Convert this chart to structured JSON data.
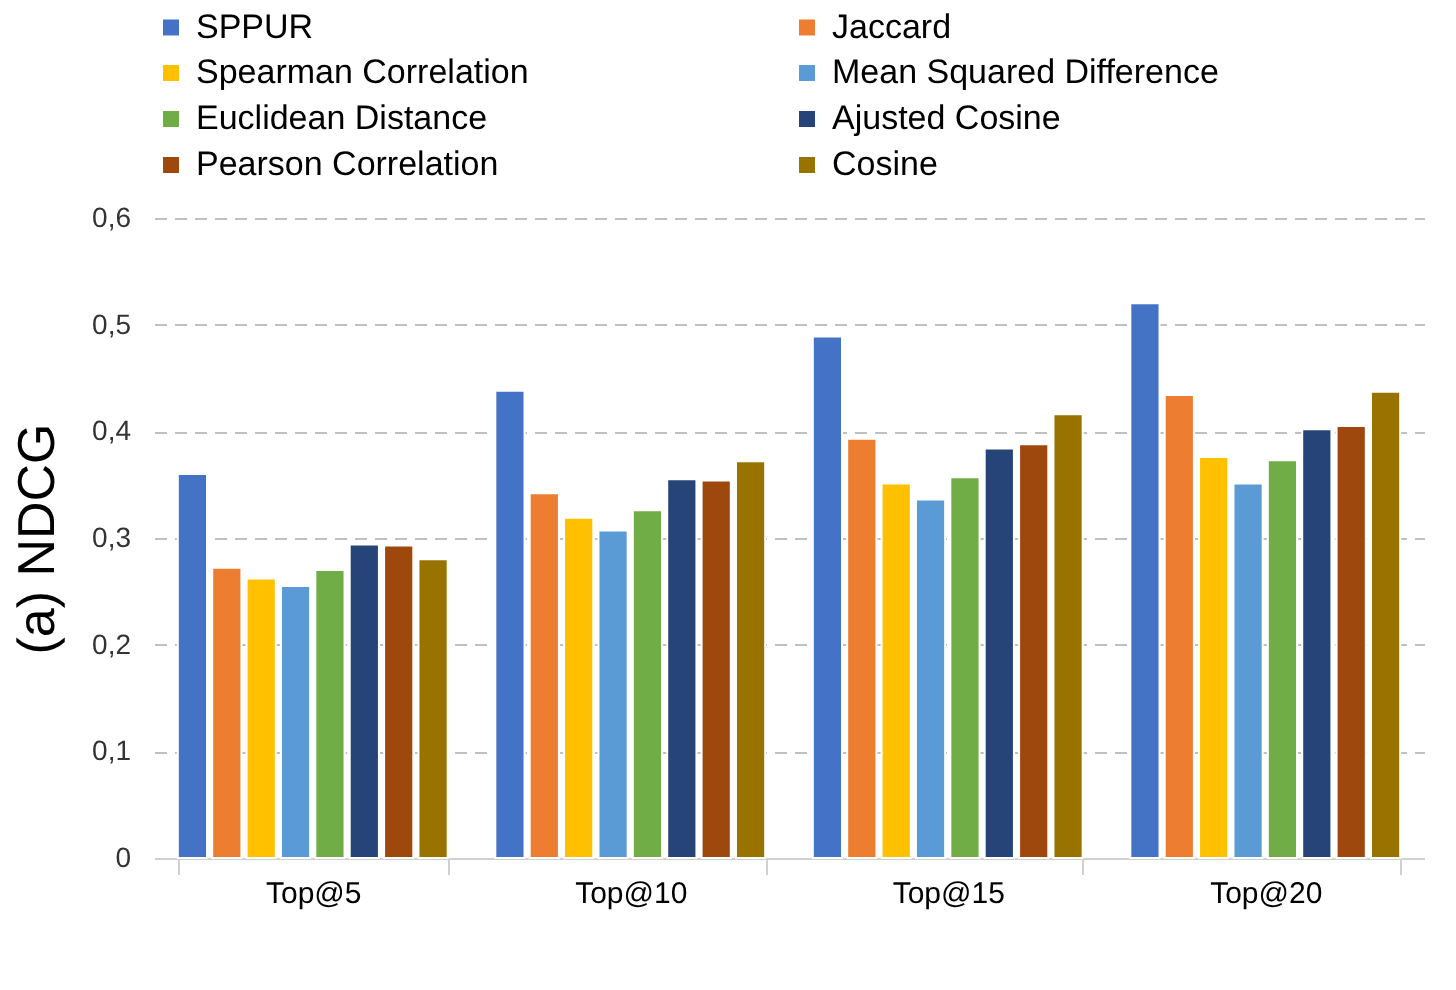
{
  "chart_data": {
    "type": "bar",
    "ylabel": "(a) NDCG",
    "categories": [
      "Top@5",
      "Top@10",
      "Top@15",
      "Top@20"
    ],
    "series": [
      {
        "name": "SPPUR",
        "color": "#4472c4",
        "values": [
          0.36,
          0.438,
          0.489,
          0.52
        ]
      },
      {
        "name": "Jaccard",
        "color": "#ed7d31",
        "values": [
          0.272,
          0.342,
          0.393,
          0.434
        ]
      },
      {
        "name": "Spearman Correlation",
        "color": "#ffc000",
        "values": [
          0.262,
          0.319,
          0.351,
          0.376
        ]
      },
      {
        "name": "Mean Squared Difference",
        "color": "#5b9bd5",
        "values": [
          0.255,
          0.307,
          0.336,
          0.351
        ]
      },
      {
        "name": "Euclidean Distance",
        "color": "#70ad47",
        "values": [
          0.27,
          0.326,
          0.357,
          0.373
        ]
      },
      {
        "name": "Ajusted Cosine",
        "color": "#264478",
        "values": [
          0.294,
          0.355,
          0.384,
          0.402
        ]
      },
      {
        "name": "Pearson Correlation",
        "color": "#9e480e",
        "values": [
          0.293,
          0.354,
          0.388,
          0.405
        ]
      },
      {
        "name": "Cosine",
        "color": "#997300",
        "values": [
          0.28,
          0.372,
          0.416,
          0.437
        ]
      }
    ],
    "ylim": [
      0,
      0.6
    ],
    "yticks": [
      0,
      {
        "value": 0.1,
        "label": "0,1"
      },
      {
        "value": 0.2,
        "label": "0,2"
      },
      {
        "value": 0.3,
        "label": "0,3"
      },
      {
        "value": 0.4,
        "label": "0,4"
      },
      {
        "value": 0.5,
        "label": "0,5"
      },
      {
        "value": 0.6,
        "label": "0,6"
      }
    ],
    "grid": "y",
    "legend": "top"
  }
}
